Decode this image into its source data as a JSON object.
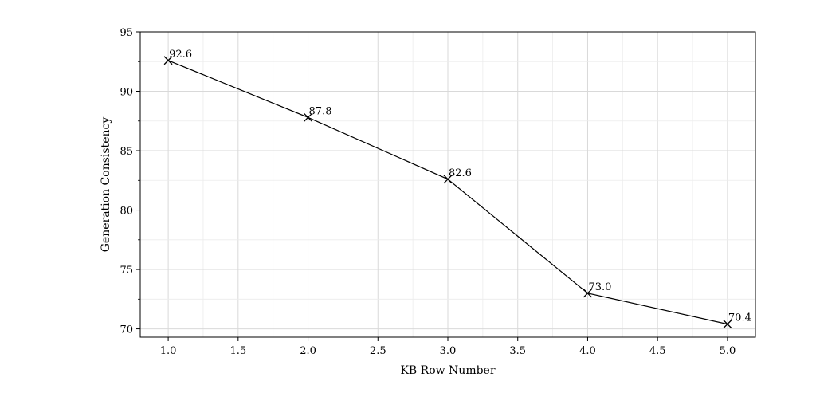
{
  "chart_data": {
    "type": "line",
    "title": "",
    "xlabel": "KB Row Number",
    "ylabel": "Generation Consistency",
    "xlim": [
      0.8,
      5.2
    ],
    "ylim": [
      69.3,
      95
    ],
    "x_ticks": [
      1.0,
      1.5,
      2.0,
      2.5,
      3.0,
      3.5,
      4.0,
      4.5,
      5.0
    ],
    "x_tick_labels": [
      "1.0",
      "1.5",
      "2.0",
      "2.5",
      "3.0",
      "3.5",
      "4.0",
      "4.5",
      "5.0"
    ],
    "y_ticks": [
      70,
      75,
      80,
      85,
      90,
      95
    ],
    "y_tick_labels": [
      "70",
      "75",
      "80",
      "85",
      "90",
      "95"
    ],
    "grid": true,
    "series": [
      {
        "x": [
          1.0,
          2.0,
          3.0,
          4.0,
          5.0
        ],
        "values": [
          92.6,
          87.8,
          82.6,
          73.0,
          70.4
        ],
        "labels": [
          "92.6",
          "87.8",
          "82.6",
          "73.0",
          "70.4"
        ],
        "marker": "x",
        "color": "#000000"
      }
    ]
  }
}
